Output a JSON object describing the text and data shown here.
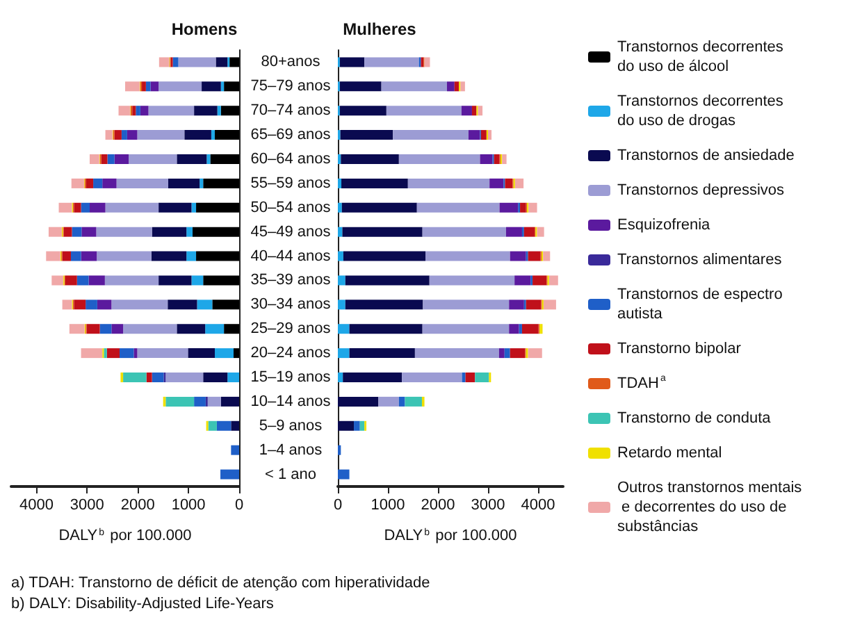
{
  "chart_data": [
    {
      "type": "bar",
      "orientation": "horizontal",
      "stacked": true,
      "title": "Homens",
      "xlabel": "DALY$^{b}$ por 100.000",
      "categories": [
        "80+anos",
        "75–79 anos",
        "70–74 anos",
        "65–69 anos",
        "60–64 anos",
        "55–59 anos",
        "50–54 anos",
        "45–49 anos",
        "40–44 anos",
        "35–39 anos",
        "30–34 anos",
        "25–29 anos",
        "20–24 anos",
        "15–19 anos",
        "10–14 anos",
        "5–9 anos",
        "1–4 anos",
        "< 1 ano"
      ],
      "xlim": [
        4500,
        0
      ],
      "xticks": [
        4000,
        3000,
        2000,
        1000,
        0
      ],
      "annotations": [
        "a) TDAH: Transtorno de déficit de atenção com hiperatividade",
        "b) DALY: Disability-Adjusted Life-Years"
      ],
      "series": [
        {
          "color": "#000000",
          "values": [
            190,
            300,
            360,
            480,
            570,
            710,
            850,
            920,
            850,
            710,
            530,
            300,
            110,
            0,
            0,
            0,
            0,
            0
          ]
        },
        {
          "color": "#1ea7e8",
          "values": [
            40,
            60,
            70,
            70,
            70,
            70,
            90,
            120,
            190,
            230,
            300,
            370,
            370,
            230,
            0,
            0,
            0,
            0
          ]
        },
        {
          "color": "#0a0a50",
          "values": [
            230,
            380,
            460,
            530,
            590,
            620,
            650,
            680,
            690,
            650,
            580,
            560,
            530,
            480,
            360,
            160,
            0,
            0
          ]
        },
        {
          "color": "#9c9cd4",
          "values": [
            740,
            850,
            900,
            930,
            950,
            1020,
            1050,
            1100,
            1080,
            1060,
            1110,
            1060,
            1000,
            740,
            260,
            0,
            0,
            0
          ]
        },
        {
          "color": "#5b1a9e",
          "values": [
            0,
            160,
            160,
            200,
            280,
            280,
            310,
            290,
            310,
            320,
            280,
            230,
            70,
            0,
            0,
            0,
            0,
            0
          ]
        },
        {
          "color": "#3a2a9a",
          "values": [
            0,
            0,
            0,
            0,
            0,
            0,
            0,
            0,
            0,
            0,
            0,
            0,
            0,
            40,
            40,
            0,
            0,
            0
          ]
        },
        {
          "color": "#1f5fc8",
          "values": [
            110,
            90,
            90,
            110,
            140,
            180,
            170,
            190,
            200,
            230,
            230,
            230,
            280,
            230,
            230,
            280,
            160,
            370
          ]
        },
        {
          "color": "#c0101a",
          "values": [
            40,
            80,
            70,
            140,
            120,
            140,
            140,
            160,
            170,
            230,
            230,
            260,
            250,
            110,
            0,
            0,
            0,
            0
          ]
        },
        {
          "color": "#e05a1a",
          "values": [
            20,
            30,
            30,
            30,
            30,
            30,
            20,
            20,
            20,
            20,
            20,
            20,
            0,
            0,
            0,
            0,
            0,
            0
          ]
        },
        {
          "color": "#3cc4b4",
          "values": [
            0,
            0,
            0,
            0,
            0,
            0,
            0,
            0,
            0,
            0,
            0,
            0,
            60,
            460,
            560,
            170,
            0,
            0
          ]
        },
        {
          "color": "#f0e000",
          "values": [
            10,
            10,
            10,
            10,
            10,
            10,
            20,
            20,
            20,
            20,
            20,
            20,
            30,
            50,
            50,
            40,
            0,
            0
          ]
        },
        {
          "color": "#f0a8a8",
          "values": [
            200,
            290,
            230,
            140,
            190,
            250,
            260,
            260,
            280,
            230,
            190,
            300,
            420,
            0,
            0,
            0,
            0,
            0
          ]
        }
      ]
    },
    {
      "type": "bar",
      "orientation": "horizontal",
      "stacked": true,
      "title": "Mulheres",
      "xlabel": "DALY$^{b}$ por 100.000",
      "categories": [
        null,
        null,
        null,
        null,
        null,
        null,
        null,
        null,
        null,
        null,
        null,
        null,
        null,
        null,
        null,
        null,
        null,
        null
      ],
      "xlim": [
        0,
        4500
      ],
      "xticks": [
        0,
        1000,
        2000,
        3000,
        4000
      ],
      "tick_labels": "x",
      "legend": "right",
      "series": [
        {
          "name": "Transtornos decorrentes do uso de álcool",
          "color": "#000000",
          "values": [
            0,
            0,
            0,
            0,
            0,
            0,
            0,
            0,
            0,
            0,
            0,
            0,
            0,
            0,
            0,
            0,
            0,
            0
          ]
        },
        {
          "name": "Transtornos decorrentes do uso de drogas",
          "color": "#1ea7e8",
          "values": [
            40,
            40,
            40,
            50,
            60,
            70,
            80,
            90,
            110,
            150,
            150,
            230,
            230,
            100,
            0,
            0,
            0,
            0
          ]
        },
        {
          "name": "Transtornos de ansiedade",
          "color": "#0a0a50",
          "values": [
            490,
            830,
            930,
            1050,
            1160,
            1330,
            1500,
            1600,
            1640,
            1680,
            1550,
            1460,
            1310,
            1180,
            810,
            320,
            0,
            0
          ]
        },
        {
          "name": "Transtornos depressivos",
          "color": "#9c9cd4",
          "values": [
            1090,
            1310,
            1500,
            1510,
            1620,
            1630,
            1650,
            1670,
            1690,
            1700,
            1720,
            1730,
            1680,
            1200,
            410,
            0,
            0,
            0
          ]
        },
        {
          "name": "Esquizofrenia",
          "color": "#5b1a9e",
          "values": [
            0,
            150,
            210,
            230,
            250,
            280,
            370,
            320,
            320,
            320,
            300,
            200,
            110,
            0,
            0,
            0,
            0,
            0
          ]
        },
        {
          "name": "Transtornos alimentares",
          "color": "#3a2a9a",
          "values": [
            0,
            0,
            0,
            0,
            0,
            0,
            0,
            0,
            0,
            0,
            0,
            0,
            0,
            0,
            0,
            0,
            0,
            0
          ]
        },
        {
          "name": "Transtornos de espectro autista",
          "color": "#1f5fc8",
          "values": [
            40,
            0,
            0,
            20,
            30,
            30,
            40,
            40,
            40,
            40,
            40,
            60,
            110,
            70,
            120,
            120,
            60,
            230
          ]
        },
        {
          "name": "Transtorno bipolar",
          "color": "#c0101a",
          "values": [
            50,
            90,
            90,
            110,
            110,
            150,
            120,
            210,
            250,
            280,
            300,
            330,
            300,
            190,
            0,
            0,
            0,
            0
          ]
        },
        {
          "name": "TDAH$^{a}$",
          "color": "#e05a1a",
          "values": [
            20,
            0,
            0,
            0,
            20,
            20,
            20,
            20,
            20,
            20,
            20,
            20,
            20,
            0,
            0,
            0,
            0,
            0
          ]
        },
        {
          "name": "Transtorno de conduta",
          "color": "#3cc4b4",
          "values": [
            0,
            0,
            0,
            0,
            0,
            0,
            0,
            0,
            0,
            0,
            0,
            0,
            0,
            280,
            340,
            90,
            0,
            0
          ]
        },
        {
          "name": "Retardo mental",
          "color": "#f0e000",
          "values": [
            0,
            30,
            30,
            30,
            30,
            30,
            30,
            30,
            30,
            30,
            30,
            60,
            40,
            40,
            50,
            40,
            0,
            0
          ]
        },
        {
          "name": "Outros transtornos mentais e decorrentes do uso de substâncias",
          "color": "#f0a8a8",
          "values": [
            110,
            90,
            90,
            70,
            90,
            170,
            170,
            140,
            140,
            180,
            250,
            0,
            280,
            0,
            0,
            0,
            0,
            0
          ]
        }
      ]
    }
  ]
}
